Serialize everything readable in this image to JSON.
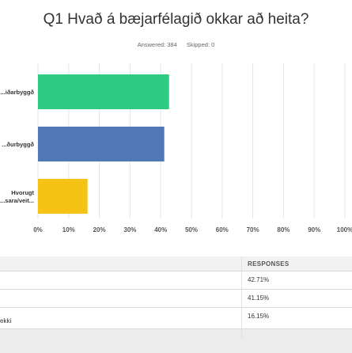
{
  "question": {
    "title": "Q1 Hvað á bæjarfélagið okkar að heita?",
    "answered": "Answered: 384",
    "skipped": "Skipped: 0"
  },
  "chart_data": {
    "type": "bar",
    "orientation": "horizontal",
    "categories": [
      "...iðarbyggð",
      "...ðurbyggð",
      "Hvorugt ...sara/veit..."
    ],
    "values": [
      42.71,
      41.15,
      16.15
    ],
    "colors": [
      "#2ecc82",
      "#4f78b5",
      "#f5c316"
    ],
    "xlim": [
      0,
      100
    ],
    "x_ticks": [
      "0%",
      "10%",
      "20%",
      "30%",
      "40%",
      "50%",
      "60%",
      "70%",
      "80%",
      "90%",
      "100%"
    ],
    "grid": true
  },
  "table": {
    "header": "RESPONSES",
    "rows": [
      {
        "label": "",
        "value": "42.71%"
      },
      {
        "label": "",
        "value": "41.15%"
      },
      {
        "label": "ekki",
        "value": "16.15%"
      }
    ]
  }
}
